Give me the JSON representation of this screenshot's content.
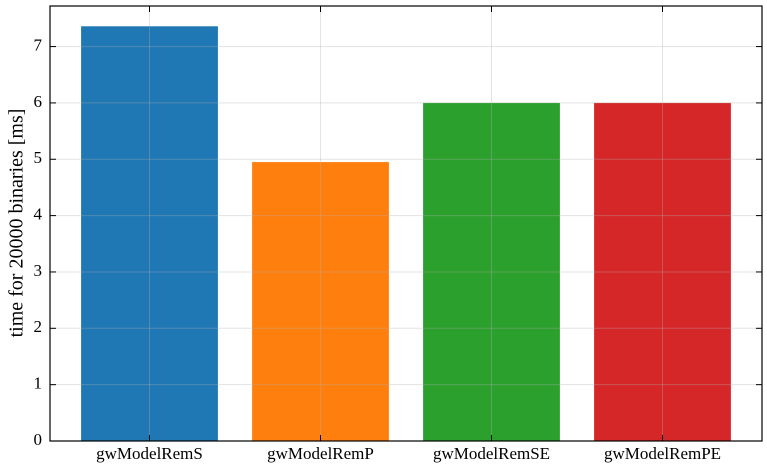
{
  "chart_data": {
    "type": "bar",
    "y_label": "time for 20000 binaries [ms]",
    "categories": [
      "gwModelRemS",
      "gwModelRemP",
      "gwModelRemSE",
      "gwModelRemPE"
    ],
    "values": [
      7.36,
      4.95,
      6.0,
      6.0
    ],
    "colors": [
      "#1f77b4",
      "#ff7f0e",
      "#2ca02c",
      "#d62728"
    ],
    "ylim": [
      0,
      7.72
    ],
    "yticks": [
      0,
      1,
      2,
      3,
      4,
      5,
      6,
      7
    ],
    "grid": true
  }
}
